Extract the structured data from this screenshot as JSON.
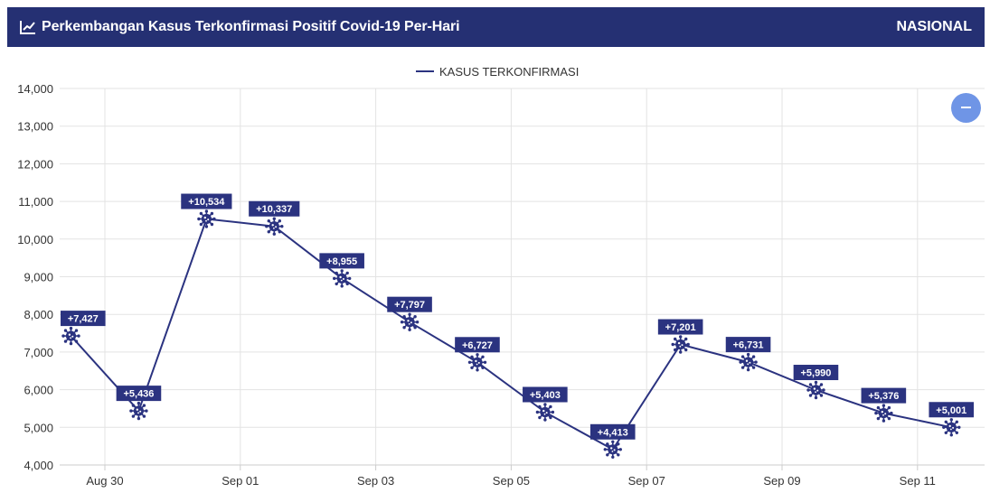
{
  "header": {
    "title": "Perkembangan Kasus Terkonfirmasi Positif Covid-19 Per-Hari",
    "region": "NASIONAL",
    "icon": "chart-line-icon",
    "background_color": "#253073"
  },
  "zoom_button": {
    "icon": "minus-icon",
    "color": "#6f95e6"
  },
  "chart_data": {
    "type": "line",
    "title": "",
    "xlabel": "",
    "ylabel": "",
    "legend": {
      "position": "top-center"
    },
    "grid": true,
    "ylim": [
      4000,
      14000
    ],
    "yticks": [
      4000,
      5000,
      6000,
      7000,
      8000,
      9000,
      10000,
      11000,
      12000,
      13000,
      14000
    ],
    "ytick_labels": [
      "4,000",
      "5,000",
      "6,000",
      "7,000",
      "8,000",
      "9,000",
      "10,000",
      "11,000",
      "12,000",
      "13,000",
      "14,000"
    ],
    "xtick_labels": [
      "Aug 30",
      "Sep 01",
      "Sep 03",
      "Sep 05",
      "Sep 07",
      "Sep 09",
      "Sep 11"
    ],
    "xtick_dates": [
      "2021-08-30",
      "2021-09-01",
      "2021-09-03",
      "2021-09-05",
      "2021-09-07",
      "2021-09-09",
      "2021-09-11"
    ],
    "series_color": "#2b3380",
    "marker": "virus-icon",
    "series": [
      {
        "name": "KASUS TERKONFIRMASI",
        "points": [
          {
            "date": "2021-08-29 12:00",
            "value": 7427,
            "label": "+7,427"
          },
          {
            "date": "2021-08-30 12:00",
            "value": 5436,
            "label": "+5,436"
          },
          {
            "date": "2021-08-31 12:00",
            "value": 10534,
            "label": "+10,534"
          },
          {
            "date": "2021-09-01 12:00",
            "value": 10337,
            "label": "+10,337"
          },
          {
            "date": "2021-09-02 12:00",
            "value": 8955,
            "label": "+8,955"
          },
          {
            "date": "2021-09-03 12:00",
            "value": 7797,
            "label": "+7,797"
          },
          {
            "date": "2021-09-04 12:00",
            "value": 6727,
            "label": "+6,727"
          },
          {
            "date": "2021-09-05 12:00",
            "value": 5403,
            "label": "+5,403"
          },
          {
            "date": "2021-09-06 12:00",
            "value": 4413,
            "label": "+4,413"
          },
          {
            "date": "2021-09-07 12:00",
            "value": 7201,
            "label": "+7,201"
          },
          {
            "date": "2021-09-08 12:00",
            "value": 6731,
            "label": "+6,731"
          },
          {
            "date": "2021-09-09 12:00",
            "value": 5990,
            "label": "+5,990"
          },
          {
            "date": "2021-09-10 12:00",
            "value": 5376,
            "label": "+5,376"
          },
          {
            "date": "2021-09-11 12:00",
            "value": 5001,
            "label": "+5,001"
          }
        ]
      }
    ]
  }
}
